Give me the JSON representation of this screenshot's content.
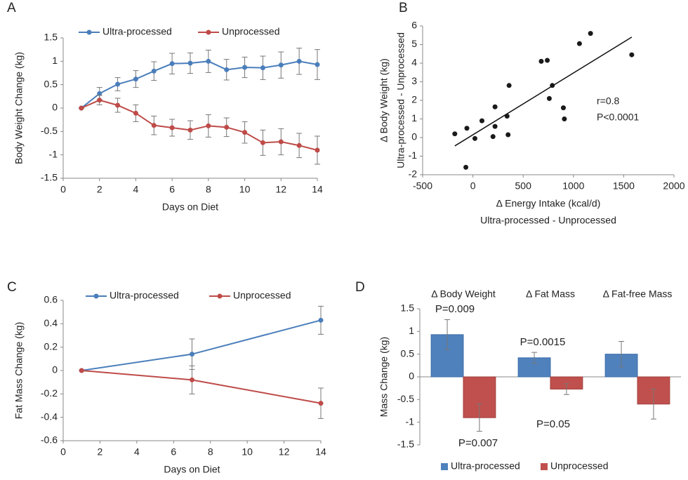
{
  "chart_data": [
    {
      "type": "line",
      "panel_label": "A",
      "xlabel": "Days on Diet",
      "ylabel": "Body Weight Change (kg)",
      "x": [
        1,
        2,
        3,
        4,
        5,
        6,
        7,
        8,
        9,
        10,
        11,
        12,
        13,
        14
      ],
      "xlim": [
        0,
        14
      ],
      "xticks": [
        0,
        2,
        4,
        6,
        8,
        10,
        12,
        14
      ],
      "ylim": [
        -1.5,
        1.5
      ],
      "yticks": [
        -1.5,
        -1,
        -0.5,
        0,
        0.5,
        1,
        1.5
      ],
      "legend": "top",
      "series": [
        {
          "name": "Ultra-processed",
          "color": "#4a7ebb",
          "values": [
            0,
            0.31,
            0.51,
            0.62,
            0.79,
            0.95,
            0.96,
            1.0,
            0.82,
            0.87,
            0.86,
            0.92,
            1.0,
            0.93
          ],
          "errors": [
            0,
            0.13,
            0.14,
            0.18,
            0.2,
            0.22,
            0.22,
            0.24,
            0.22,
            0.22,
            0.25,
            0.28,
            0.28,
            0.32
          ]
        },
        {
          "name": "Unprocessed",
          "color": "#be4b48",
          "values": [
            0,
            0.17,
            0.06,
            -0.11,
            -0.37,
            -0.42,
            -0.47,
            -0.38,
            -0.41,
            -0.52,
            -0.74,
            -0.72,
            -0.8,
            -0.9
          ],
          "errors": [
            0,
            0.1,
            0.15,
            0.18,
            0.2,
            0.18,
            0.2,
            0.24,
            0.2,
            0.23,
            0.27,
            0.28,
            0.26,
            0.3
          ]
        }
      ]
    },
    {
      "type": "scatter",
      "panel_label": "B",
      "xlabel": [
        "Δ Energy Intake (kcal/d)",
        "Ultra-processed - Unprocessed"
      ],
      "ylabel": [
        "Δ Body Weight (kg)",
        "Ultra-processed - Unprocessed"
      ],
      "xlim": [
        -500,
        2000
      ],
      "xticks": [
        -500,
        0,
        500,
        1000,
        1500,
        2000
      ],
      "ylim": [
        -2,
        6
      ],
      "yticks": [
        -2,
        -1,
        0,
        1,
        2,
        3,
        4,
        5,
        6
      ],
      "color": "#1a1a1a",
      "x": [
        -180,
        -60,
        -70,
        20,
        90,
        200,
        220,
        220,
        340,
        350,
        360,
        680,
        740,
        760,
        790,
        900,
        910,
        1060,
        1170,
        1580
      ],
      "values": [
        0.2,
        0.5,
        -1.6,
        -0.05,
        0.9,
        0.05,
        0.6,
        1.65,
        1.15,
        0.15,
        2.8,
        4.1,
        4.15,
        2.1,
        2.8,
        1.6,
        1.0,
        5.05,
        5.6,
        4.45
      ],
      "trendline": {
        "x": [
          -180,
          1580
        ],
        "y": [
          -0.45,
          5.4
        ]
      },
      "annotations": [
        "r=0.8",
        "P<0.0001"
      ]
    },
    {
      "type": "line",
      "panel_label": "C",
      "xlabel": "Days on Diet",
      "ylabel": "Fat Mass Change (kg)",
      "x": [
        1,
        7,
        14
      ],
      "xlim": [
        0,
        14
      ],
      "xticks": [
        0,
        2,
        4,
        6,
        8,
        10,
        12,
        14
      ],
      "ylim": [
        -0.6,
        0.6
      ],
      "yticks": [
        -0.6,
        -0.4,
        -0.2,
        0,
        0.2,
        0.4,
        0.6
      ],
      "legend": "top",
      "series": [
        {
          "name": "Ultra-processed",
          "color": "#4a7ebb",
          "values": [
            0,
            0.14,
            0.43
          ],
          "errors": [
            0,
            0.13,
            0.12
          ]
        },
        {
          "name": "Unprocessed",
          "color": "#be4b48",
          "values": [
            0,
            -0.08,
            -0.28
          ],
          "errors": [
            0,
            0.12,
            0.13
          ]
        }
      ]
    },
    {
      "type": "bar",
      "panel_label": "D",
      "ylabel": "Mass Change (kg)",
      "categories": [
        "Δ Body Weight",
        "Δ Fat Mass",
        "Δ Fat-free Mass"
      ],
      "ylim": [
        -1.5,
        1.5
      ],
      "yticks": [
        -1.5,
        -1,
        -0.5,
        0,
        0.5,
        1,
        1.5
      ],
      "legend": "bottom",
      "series": [
        {
          "name": "Ultra-processed",
          "color": "#4f81bd",
          "values": [
            0.93,
            0.42,
            0.5
          ],
          "errors": [
            0.33,
            0.12,
            0.28
          ]
        },
        {
          "name": "Unprocessed",
          "color": "#c0504d",
          "values": [
            -0.9,
            -0.27,
            -0.6
          ],
          "errors": [
            0.3,
            0.12,
            0.33
          ]
        }
      ],
      "annotations": [
        "P=0.009",
        "P=0.0015",
        "P=0.007",
        "P=0.05"
      ]
    }
  ]
}
